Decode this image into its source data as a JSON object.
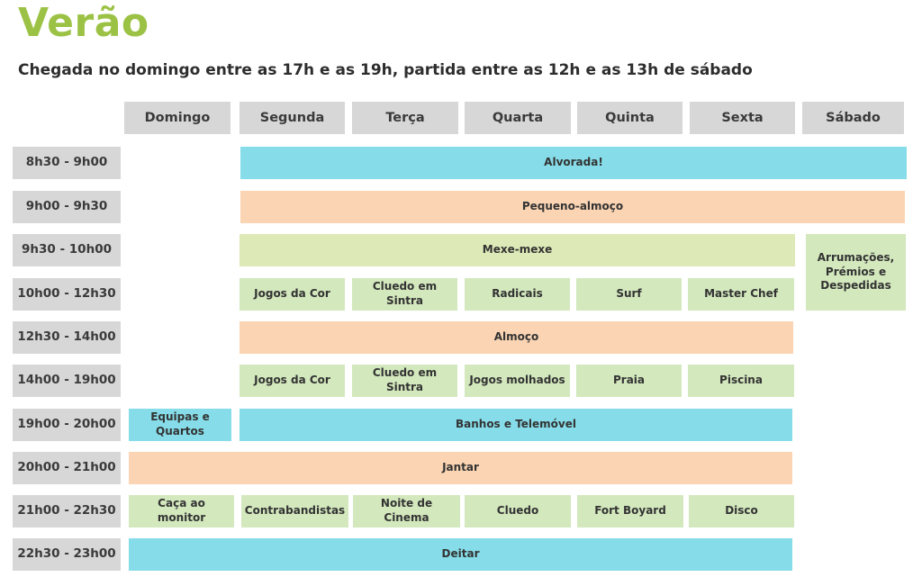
{
  "page": {
    "title": "Verão",
    "subtitle": "Chegada no domingo entre as 17h e as 19h, partida entre as 12h e as 13h de sábado"
  },
  "days": [
    "Domingo",
    "Segunda",
    "Terça",
    "Quarta",
    "Quinta",
    "Sexta",
    "Sábado"
  ],
  "times": [
    "8h30 - 9h00",
    "9h00 - 9h30",
    "9h30 - 10h00",
    "10h00 - 12h30",
    "12h30 - 14h00",
    "14h00 - 19h00",
    "19h00 - 20h00",
    "20h00 - 21h00",
    "21h00 - 22h30",
    "22h30 - 23h00"
  ],
  "activities": {
    "alvorada": "Alvorada!",
    "pequeno_almoco": "Pequeno-almoço",
    "mexe_mexe": "Mexe-mexe",
    "arrumacoes": "Arrumações, Prémios e Despedidas",
    "manha": [
      "Jogos da Cor",
      "Cluedo em Sintra",
      "Radicais",
      "Surf",
      "Master Chef"
    ],
    "almoco": "Almoço",
    "tarde": [
      "Jogos da Cor",
      "Cluedo em Sintra",
      "Jogos molhados",
      "Praia",
      "Piscina"
    ],
    "equipas": "Equipas e Quartos",
    "banhos": "Banhos e Telemóvel",
    "jantar": "Jantar",
    "noite": [
      "Caça ao monitor",
      "Contrabandistas",
      "Noite de Cinema",
      "Cluedo",
      "Fort Boyard",
      "Disco"
    ],
    "deitar": "Deitar"
  },
  "colors": {
    "title_green": "#9cc245",
    "header_gray": "#d7d7d7",
    "blue": "#86dde9",
    "orange": "#fad4b3",
    "light_green": "#dde9b6",
    "pale_green": "#d3e8bd"
  }
}
